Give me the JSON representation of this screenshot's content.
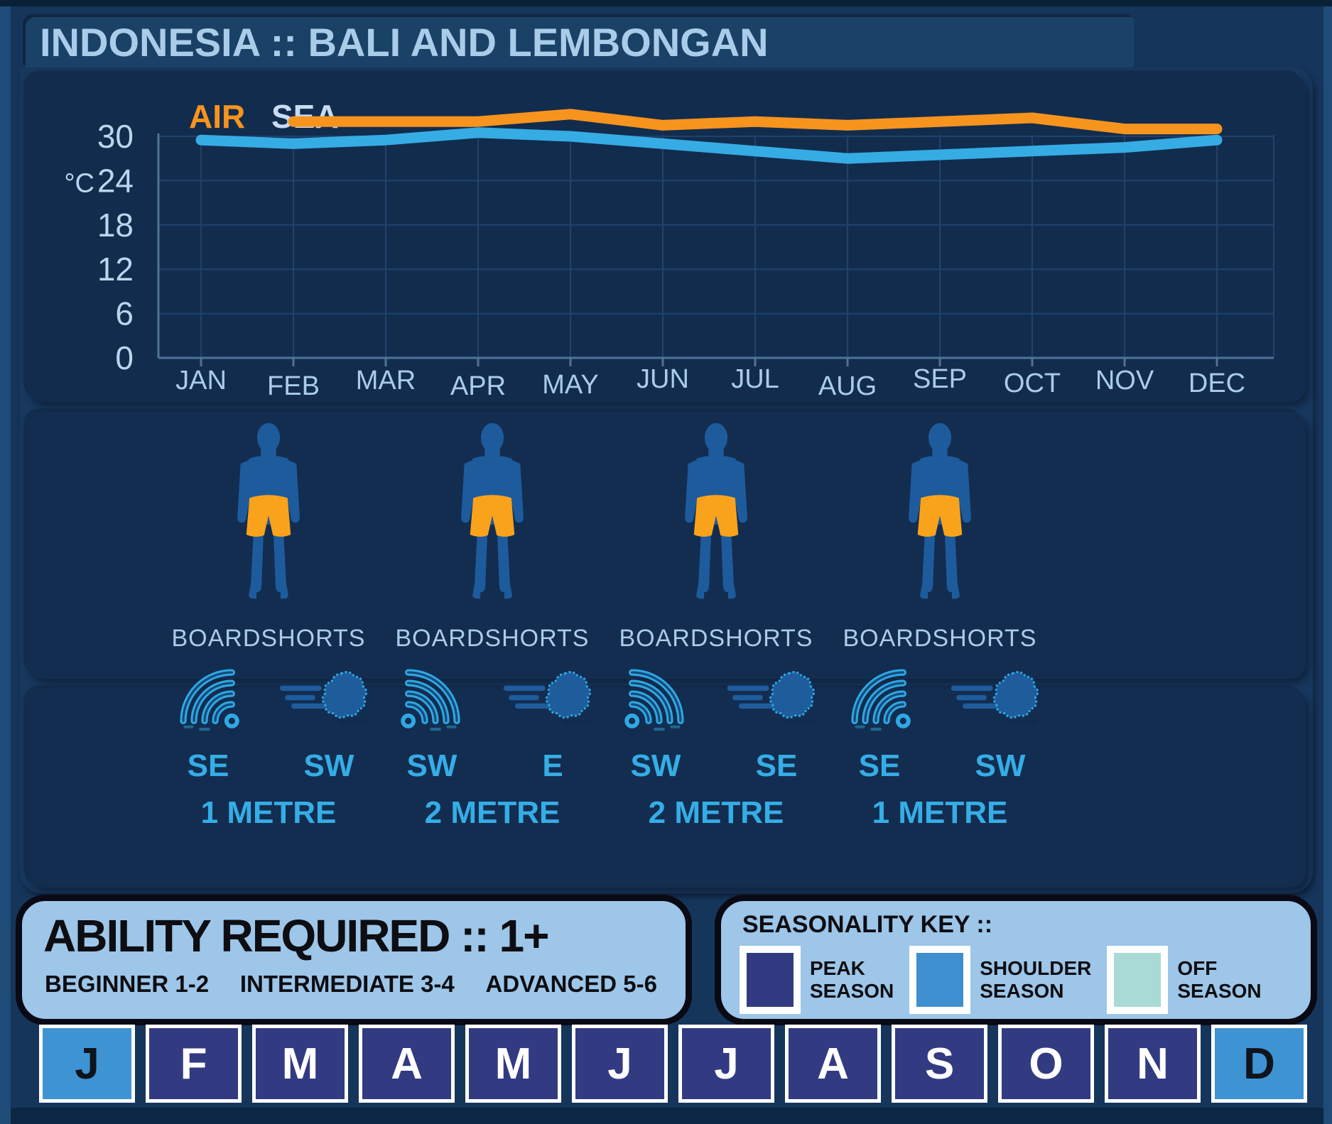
{
  "title": "INDONESIA :: BALI AND LEMBONGAN",
  "chart_data": {
    "type": "line",
    "categories": [
      "JAN",
      "FEB",
      "MAR",
      "APR",
      "MAY",
      "JUN",
      "JUL",
      "AUG",
      "SEP",
      "OCT",
      "NOV",
      "DEC"
    ],
    "series": [
      {
        "name": "AIR",
        "color": "#F7941E",
        "values": [
          null,
          32,
          32,
          32,
          33,
          31.5,
          32,
          31.5,
          32,
          32.5,
          31,
          31
        ]
      },
      {
        "name": "SEA",
        "color": "#36ACE4",
        "values": [
          29.5,
          29,
          29.5,
          30.5,
          30,
          29,
          28,
          27,
          27.5,
          28,
          28.5,
          29.5
        ]
      }
    ],
    "ylabel": "°C",
    "xlabel": "",
    "yticks": [
      0,
      6,
      12,
      18,
      24,
      30
    ],
    "ylim": [
      0,
      34
    ],
    "grid": true,
    "legend_position": "top-left"
  },
  "gear": {
    "items": [
      {
        "label": "BOARDSHORTS"
      },
      {
        "label": "BOARDSHORTS"
      },
      {
        "label": "BOARDSHORTS"
      },
      {
        "label": "BOARDSHORTS"
      }
    ]
  },
  "surf": {
    "columns": [
      {
        "swell_dir": "SE",
        "wind_dir": "SW",
        "wave_height": "1 METRE"
      },
      {
        "swell_dir": "SW",
        "wind_dir": "E",
        "wave_height": "2 METRE"
      },
      {
        "swell_dir": "SW",
        "wind_dir": "SE",
        "wave_height": "2 METRE"
      },
      {
        "swell_dir": "SE",
        "wind_dir": "SW",
        "wave_height": "1 METRE"
      }
    ]
  },
  "ability": {
    "title": "ABILITY REQUIRED :: 1+",
    "levels": [
      "BEGINNER 1-2",
      "INTERMEDIATE 3-4",
      "ADVANCED 5-6"
    ]
  },
  "seasonality_key": {
    "title": "SEASONALITY KEY ::",
    "entries": [
      {
        "label_lines": [
          "PEAK",
          "SEASON"
        ],
        "color": "#323A82"
      },
      {
        "label_lines": [
          "SHOULDER",
          "SEASON"
        ],
        "color": "#3E8FD0"
      },
      {
        "label_lines": [
          "OFF",
          "SEASON"
        ],
        "color": "#A9DAD6"
      }
    ]
  },
  "months": [
    {
      "letter": "J",
      "season": "shoulder"
    },
    {
      "letter": "F",
      "season": "peak"
    },
    {
      "letter": "M",
      "season": "peak"
    },
    {
      "letter": "A",
      "season": "peak"
    },
    {
      "letter": "M",
      "season": "peak"
    },
    {
      "letter": "J",
      "season": "peak"
    },
    {
      "letter": "J",
      "season": "peak"
    },
    {
      "letter": "A",
      "season": "peak"
    },
    {
      "letter": "S",
      "season": "peak"
    },
    {
      "letter": "O",
      "season": "peak"
    },
    {
      "letter": "N",
      "season": "peak"
    },
    {
      "letter": "D",
      "season": "shoulder"
    }
  ],
  "colors": {
    "air_line": "#F7941E",
    "sea_line": "#36ACE4",
    "peak_season": "#323A82",
    "shoulder_season": "#3E94D3",
    "off_season": "#A9DAD6",
    "cyan_label": "#35ADE6"
  }
}
